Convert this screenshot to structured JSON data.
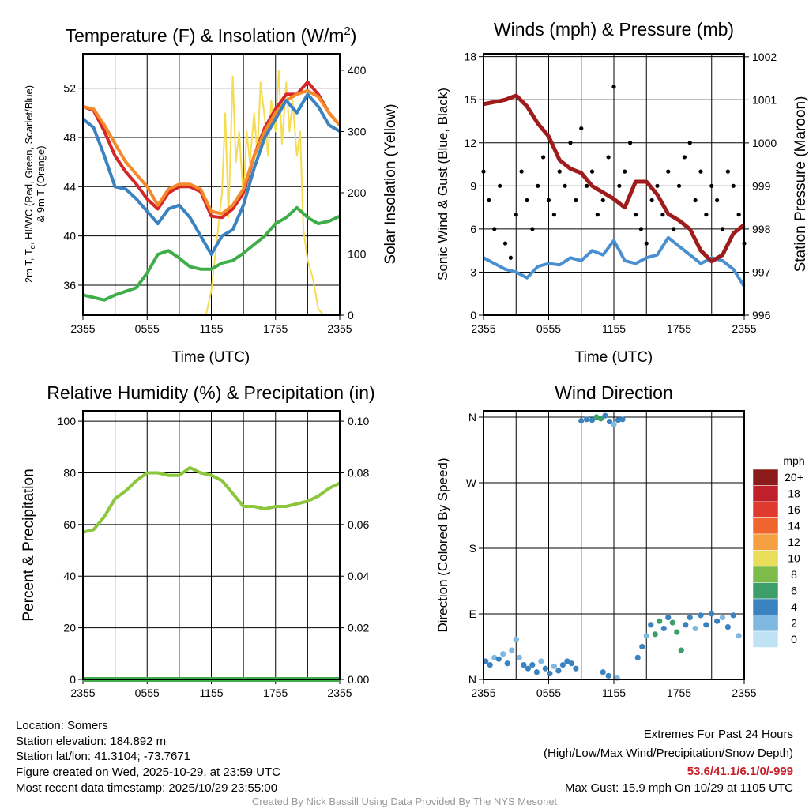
{
  "chart_data": [
    {
      "id": "temp",
      "type": "line",
      "title": {
        "main": "Temperature (F) & Insolation (W/m",
        "sup": "2",
        "end": ")"
      },
      "xlabel": "Time (UTC)",
      "ylabel": {
        "line1_a": "2m T, T",
        "line1_sub": "d",
        "line1_b": ", HI/WC (Red, Green, Scarlet/Blue)",
        "line2": "& 9m T (Orange)"
      },
      "ylabel_right": "Solar Insolation (Yellow)",
      "xticks": [
        "2355",
        "0555",
        "1155",
        "1755",
        "2355"
      ],
      "xlim_hours": [
        0,
        24
      ],
      "ylim": [
        33.56,
        54.8
      ],
      "yticks": [
        36,
        40,
        44,
        48,
        52
      ],
      "ylim_right": [
        0,
        427
      ],
      "yticks_right": [
        0,
        100,
        200,
        300,
        400
      ],
      "series": [
        {
          "name": "Solar Insolation",
          "color": "#f5dc50",
          "axis": "right",
          "hours": [
            0,
            11.5,
            12,
            12.5,
            13,
            13.3,
            13.6,
            14,
            14.3,
            14.6,
            15,
            15.3,
            15.6,
            16,
            16.3,
            16.6,
            17,
            17.3,
            17.6,
            18,
            18.3,
            18.6,
            19,
            19.3,
            19.6,
            20,
            20.3,
            20.6,
            21,
            21.5,
            22,
            22.5,
            24
          ],
          "values": [
            0,
            0,
            40,
            120,
            200,
            330,
            160,
            390,
            250,
            300,
            190,
            300,
            250,
            330,
            260,
            380,
            320,
            260,
            350,
            300,
            400,
            280,
            380,
            300,
            350,
            260,
            300,
            140,
            90,
            60,
            10,
            0,
            0
          ]
        },
        {
          "name": "2m T",
          "color": "#d62728",
          "hours": "hourly",
          "values": [
            50.5,
            50.2,
            48.5,
            46.5,
            45.2,
            44.2,
            43,
            42.2,
            43.5,
            44,
            44,
            43.6,
            41.6,
            41.5,
            42.2,
            43.5,
            46.5,
            48.8,
            50.3,
            51.5,
            51.5,
            52.5,
            51.5,
            50,
            49
          ]
        },
        {
          "name": "9m T",
          "color": "#f58a2a",
          "hours": "hourly",
          "values": [
            50.5,
            50.3,
            49,
            47.5,
            46,
            45,
            44,
            42.5,
            43.8,
            44.2,
            44.2,
            43.8,
            42,
            41.8,
            42.5,
            43.8,
            46.5,
            48.5,
            50,
            51,
            51.5,
            51.8,
            51.3,
            50,
            49
          ]
        },
        {
          "name": "HI/WC",
          "color": "#3a82c0",
          "hours": "hourly",
          "values": [
            49.5,
            48.8,
            46.5,
            44,
            43.8,
            43,
            42,
            41,
            42.2,
            42.5,
            41.5,
            40,
            38.5,
            40,
            40.5,
            42.5,
            45.5,
            48,
            49.5,
            51,
            50,
            51.5,
            50.5,
            49,
            48.5
          ]
        },
        {
          "name": "2m Td",
          "color": "#3fae49",
          "hours": "hourly",
          "values": [
            35.2,
            35,
            34.8,
            35.2,
            35.5,
            35.8,
            37,
            38.5,
            38.8,
            38.2,
            37.5,
            37.3,
            37.3,
            37.8,
            38,
            38.6,
            39.3,
            40,
            41,
            41.5,
            42.3,
            41.5,
            41,
            41.2,
            41.6
          ]
        }
      ]
    },
    {
      "id": "wind",
      "type": "line",
      "title": "Winds (mph) & Pressure (mb)",
      "xlabel": "Time (UTC)",
      "ylabel": "Sonic Wind & Gust (Blue, Black)",
      "ylabel_right": "Station Pressure (Maroon)",
      "xticks": [
        "2355",
        "0555",
        "1155",
        "1755",
        "2355"
      ],
      "xlim_hours": [
        0,
        24
      ],
      "ylim": [
        0,
        18.2
      ],
      "yticks": [
        0,
        3,
        6,
        9,
        12,
        15,
        18
      ],
      "ylim_right": [
        996,
        1002.07
      ],
      "yticks_right": [
        996,
        997,
        998,
        999,
        1000,
        1001,
        1002
      ],
      "series": [
        {
          "name": "Sustained Wind",
          "color": "#4a90d0",
          "hours": "hourly",
          "values": [
            4,
            3.6,
            3.2,
            3,
            2.6,
            3.4,
            3.6,
            3.5,
            4,
            3.8,
            4.5,
            4.2,
            5.2,
            3.8,
            3.6,
            4,
            4.2,
            5.4,
            4.8,
            4.2,
            3.6,
            4,
            3.8,
            3.2,
            2
          ]
        },
        {
          "name": "Gust",
          "color": "#000000",
          "type": "scatter",
          "hours": "half-hourly",
          "values": [
            10,
            8,
            6,
            9,
            5,
            4,
            7,
            10,
            8,
            6,
            9,
            11,
            8,
            7,
            10,
            9,
            12,
            8,
            13,
            9,
            10,
            7,
            8,
            11,
            15.9,
            9,
            10,
            12,
            7,
            6,
            5,
            8,
            9,
            7,
            10,
            6,
            9,
            11,
            12,
            8,
            10,
            7,
            9,
            8,
            6,
            10,
            9,
            7,
            5
          ]
        },
        {
          "name": "Station Pressure",
          "color": "#a01c1c",
          "axis": "right",
          "hours": "hourly",
          "values": [
            1000.9,
            1000.95,
            1001.0,
            1001.1,
            1000.85,
            1000.45,
            1000.15,
            999.6,
            999.4,
            999.3,
            999.0,
            998.85,
            998.7,
            998.5,
            999.1,
            999.1,
            998.8,
            998.35,
            998.2,
            998.0,
            997.5,
            997.25,
            997.4,
            997.9,
            998.1
          ]
        }
      ]
    },
    {
      "id": "rh",
      "type": "line",
      "title": "Relative Humidity (%) & Precipitation (in)",
      "ylabel": "Percent & Precipitation",
      "xticks": [
        "2355",
        "0555",
        "1155",
        "1755",
        "2355"
      ],
      "xlim_hours": [
        0,
        24
      ],
      "ylim": [
        0,
        104
      ],
      "yticks": [
        0,
        20,
        40,
        60,
        80,
        100
      ],
      "ylim_right": [
        0,
        0.104
      ],
      "yticks_right": [
        "0.00",
        "0.02",
        "0.04",
        "0.06",
        "0.08",
        "0.10"
      ],
      "series": [
        {
          "name": "Relative Humidity",
          "color": "#8cc63f",
          "hours": "hourly",
          "values": [
            57,
            58,
            63,
            70,
            73,
            77,
            80,
            80,
            79,
            79,
            82,
            80,
            79,
            77,
            72,
            67,
            67,
            66,
            67,
            67,
            68,
            69,
            71,
            74,
            76
          ]
        },
        {
          "name": "Precipitation",
          "color": "#3fae49",
          "axis": "right",
          "hours": "hourly",
          "values": [
            0,
            0,
            0,
            0,
            0,
            0,
            0,
            0,
            0,
            0,
            0,
            0,
            0,
            0,
            0,
            0,
            0,
            0,
            0,
            0,
            0,
            0,
            0,
            0,
            0
          ]
        }
      ]
    },
    {
      "id": "dir",
      "type": "scatter",
      "title": "Wind Direction",
      "ylabel": "Direction (Colored By Speed)",
      "xticks": [
        "2355",
        "0555",
        "1155",
        "1755",
        "2355"
      ],
      "xlim_hours": [
        0,
        24
      ],
      "ylim": [
        0,
        368.7
      ],
      "yticks": [
        0,
        90,
        180,
        270,
        360
      ],
      "yticklabels": [
        "N",
        "E",
        "S",
        "W",
        "N"
      ],
      "points": [
        [
          0.2,
          25,
          3
        ],
        [
          0.6,
          20,
          4
        ],
        [
          1,
          30,
          2
        ],
        [
          1.4,
          28,
          3
        ],
        [
          1.8,
          35,
          1
        ],
        [
          2.2,
          22,
          4
        ],
        [
          2.6,
          40,
          2
        ],
        [
          3,
          55,
          1
        ],
        [
          3.3,
          30,
          2
        ],
        [
          3.7,
          20,
          3
        ],
        [
          4.1,
          15,
          4
        ],
        [
          4.5,
          20,
          3
        ],
        [
          4.9,
          10,
          4
        ],
        [
          5.3,
          25,
          2
        ],
        [
          5.7,
          15,
          3
        ],
        [
          6.1,
          8,
          4
        ],
        [
          6.5,
          18,
          2
        ],
        [
          6.9,
          12,
          3
        ],
        [
          7.3,
          20,
          4
        ],
        [
          7.7,
          25,
          3
        ],
        [
          8.1,
          22,
          4
        ],
        [
          8.5,
          15,
          3
        ],
        [
          9,
          355,
          4
        ],
        [
          9.5,
          357,
          3
        ],
        [
          10,
          356,
          4
        ],
        [
          10.4,
          360,
          5
        ],
        [
          10.8,
          358,
          6
        ],
        [
          11.2,
          362,
          4
        ],
        [
          11.6,
          354,
          3
        ],
        [
          12,
          350,
          2
        ],
        [
          12.4,
          356,
          3
        ],
        [
          12.8,
          357,
          4
        ],
        [
          11,
          10,
          4
        ],
        [
          11.5,
          5,
          3
        ],
        [
          12.3,
          2,
          2
        ],
        [
          14.2,
          30,
          4
        ],
        [
          14.6,
          45,
          3
        ],
        [
          15,
          60,
          2
        ],
        [
          15.4,
          75,
          4
        ],
        [
          15.8,
          62,
          5
        ],
        [
          16.2,
          80,
          6
        ],
        [
          16.6,
          70,
          4
        ],
        [
          17,
          85,
          4
        ],
        [
          17.4,
          78,
          6
        ],
        [
          17.8,
          65,
          5
        ],
        [
          18.2,
          40,
          6
        ],
        [
          18.6,
          75,
          3
        ],
        [
          19,
          85,
          4
        ],
        [
          19.5,
          70,
          2
        ],
        [
          20,
          88,
          4
        ],
        [
          20.5,
          75,
          3
        ],
        [
          21,
          90,
          4
        ],
        [
          21.5,
          80,
          3
        ],
        [
          22,
          85,
          2
        ],
        [
          22.5,
          72,
          3
        ],
        [
          23,
          88,
          4
        ],
        [
          23.5,
          60,
          2
        ]
      ],
      "colorbar": {
        "title": "mph",
        "labels": [
          "20+",
          "18",
          "16",
          "14",
          "12",
          "10",
          "8",
          "6",
          "4",
          "2",
          "0"
        ],
        "colors": [
          "#8b1a1a",
          "#c0202a",
          "#e03a2e",
          "#f0642e",
          "#f5a040",
          "#e8de5a",
          "#7dbb4a",
          "#3e9e6a",
          "#3a82c0",
          "#7fb8e0",
          "#bfe3f5"
        ]
      }
    }
  ],
  "footer": {
    "left": [
      "Location: Somers",
      "Station elevation: 184.892 m",
      "Station lat/lon: 41.3104; -73.7671",
      "Figure created on Wed, 2025-10-29, at 23:59 UTC",
      "Most recent data timestamp: 2025/10/29 23:55:00"
    ],
    "extremes_title": "Extremes For Past 24 Hours",
    "extremes_legend": "(High/Low/Max Wind/Precipitation/Snow Depth)",
    "extremes_values": "53.6/41.1/6.1/0/-999",
    "max_gust": "Max Gust: 15.9 mph On 10/29 at 1105 UTC",
    "credit": "Created By Nick Bassill Using Data Provided By The NYS Mesonet"
  }
}
